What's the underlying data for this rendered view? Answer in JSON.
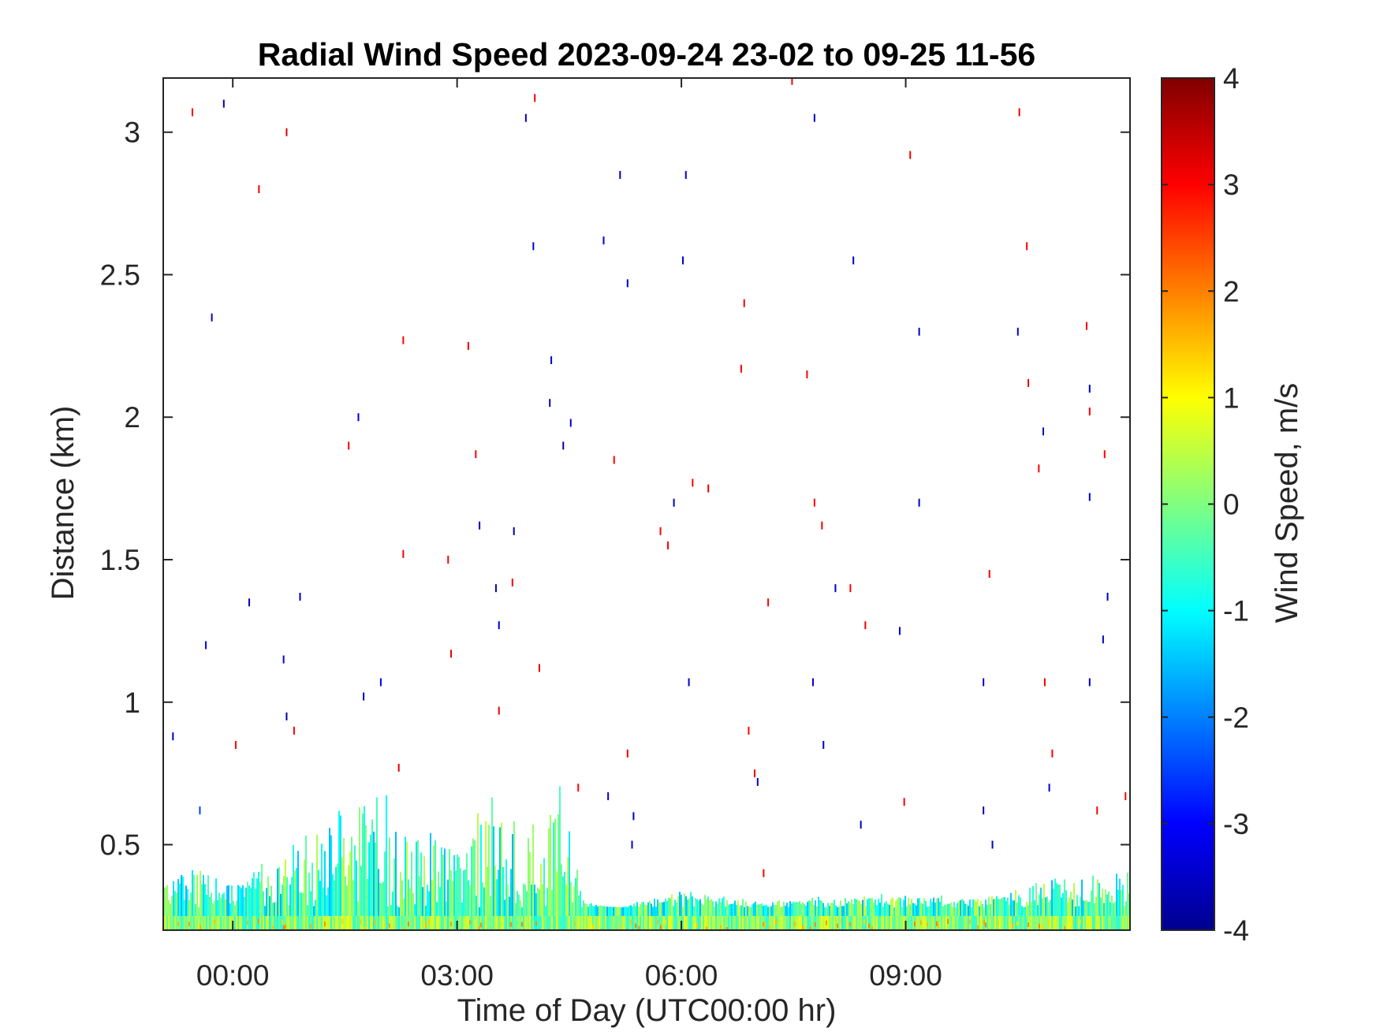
{
  "chart_data": {
    "type": "heatmap",
    "title": "Radial Wind Speed 2023-09-24 23-02 to 09-25 11-56",
    "xlabel": "Time of Day (UTC00:00 hr)",
    "ylabel": "Distance (km)",
    "colorbar_label": "Wind Speed, m/s",
    "xlim": [
      -0.93,
      12.0
    ],
    "ylim": [
      0.2,
      3.19
    ],
    "x_ticks": [
      {
        "value": 0,
        "label": "00:00"
      },
      {
        "value": 3,
        "label": "03:00"
      },
      {
        "value": 6,
        "label": "06:00"
      },
      {
        "value": 9,
        "label": "09:00"
      }
    ],
    "y_ticks": [
      {
        "value": 0.5,
        "label": "0.5"
      },
      {
        "value": 1,
        "label": "1"
      },
      {
        "value": 1.5,
        "label": "1.5"
      },
      {
        "value": 2,
        "label": "2"
      },
      {
        "value": 2.5,
        "label": "2.5"
      },
      {
        "value": 3,
        "label": "3"
      }
    ],
    "clim": [
      -4,
      4
    ],
    "colorbar_ticks": [
      {
        "value": 4,
        "label": "4"
      },
      {
        "value": 3,
        "label": "3"
      },
      {
        "value": 2,
        "label": "2"
      },
      {
        "value": 1,
        "label": "1"
      },
      {
        "value": 0,
        "label": "0"
      },
      {
        "value": -1,
        "label": "-1"
      },
      {
        "value": -2,
        "label": "-2"
      },
      {
        "value": -3,
        "label": "-3"
      },
      {
        "value": -4,
        "label": "-4"
      }
    ],
    "colormap": "jet",
    "colormap_stops": [
      "#00008f",
      "#0000ff",
      "#0080ff",
      "#00ffff",
      "#80ff80",
      "#ffff00",
      "#ff8000",
      "#ff0000",
      "#800000"
    ],
    "dense_layer_top_km": [
      {
        "time": -0.9,
        "distance": 0.42
      },
      {
        "time": -0.5,
        "distance": 0.46
      },
      {
        "time": 0.0,
        "distance": 0.38
      },
      {
        "time": 0.6,
        "distance": 0.55
      },
      {
        "time": 0.9,
        "distance": 0.6
      },
      {
        "time": 1.5,
        "distance": 0.78
      },
      {
        "time": 1.7,
        "distance": 0.78
      },
      {
        "time": 2.0,
        "distance": 0.72
      },
      {
        "time": 2.5,
        "distance": 0.6
      },
      {
        "time": 3.0,
        "distance": 0.55
      },
      {
        "time": 3.4,
        "distance": 0.72
      },
      {
        "time": 3.9,
        "distance": 0.7
      },
      {
        "time": 4.4,
        "distance": 0.73
      },
      {
        "time": 4.7,
        "distance": 0.3
      },
      {
        "time": 5.2,
        "distance": 0.28
      },
      {
        "time": 6.0,
        "distance": 0.36
      },
      {
        "time": 7.0,
        "distance": 0.3
      },
      {
        "time": 8.0,
        "distance": 0.32
      },
      {
        "time": 9.0,
        "distance": 0.33
      },
      {
        "time": 10.0,
        "distance": 0.32
      },
      {
        "time": 10.6,
        "distance": 0.38
      },
      {
        "time": 11.0,
        "distance": 0.42
      },
      {
        "time": 11.6,
        "distance": 0.44
      },
      {
        "time": 12.0,
        "distance": 0.45
      }
    ],
    "sparse_points": [
      {
        "time": -0.8,
        "distance": 0.88,
        "value": -3.5
      },
      {
        "time": -0.54,
        "distance": 3.07,
        "value": 3.0
      },
      {
        "time": -0.44,
        "distance": 0.62,
        "value": -2.5
      },
      {
        "time": -0.36,
        "distance": 1.2,
        "value": -3.0
      },
      {
        "time": -0.28,
        "distance": 2.35,
        "value": -3.5
      },
      {
        "time": -0.12,
        "distance": 3.1,
        "value": -3.8
      },
      {
        "time": 0.04,
        "distance": 0.85,
        "value": 3.0
      },
      {
        "time": 0.22,
        "distance": 1.35,
        "value": -3.6
      },
      {
        "time": 0.35,
        "distance": 2.8,
        "value": 3.1
      },
      {
        "time": 0.68,
        "distance": 1.15,
        "value": -3.4
      },
      {
        "time": 0.72,
        "distance": 0.95,
        "value": -3.8
      },
      {
        "time": 0.72,
        "distance": 3.0,
        "value": 3.3
      },
      {
        "time": 0.82,
        "distance": 0.9,
        "value": 3.0
      },
      {
        "time": 0.9,
        "distance": 1.37,
        "value": -3.6
      },
      {
        "time": 1.55,
        "distance": 1.9,
        "value": 3.0
      },
      {
        "time": 1.68,
        "distance": 2.0,
        "value": -3.5
      },
      {
        "time": 1.75,
        "distance": 1.02,
        "value": -3.7
      },
      {
        "time": 1.98,
        "distance": 1.07,
        "value": -3.2
      },
      {
        "time": 2.22,
        "distance": 0.77,
        "value": 3.2
      },
      {
        "time": 2.28,
        "distance": 2.27,
        "value": 3.0
      },
      {
        "time": 2.28,
        "distance": 1.52,
        "value": 3.1
      },
      {
        "time": 2.88,
        "distance": 1.5,
        "value": 3.0
      },
      {
        "time": 2.92,
        "distance": 1.17,
        "value": 3.2
      },
      {
        "time": 3.15,
        "distance": 2.25,
        "value": 3.1
      },
      {
        "time": 3.25,
        "distance": 1.87,
        "value": 3.0
      },
      {
        "time": 3.3,
        "distance": 1.62,
        "value": -3.5
      },
      {
        "time": 3.52,
        "distance": 1.4,
        "value": -3.6
      },
      {
        "time": 3.56,
        "distance": 1.27,
        "value": -3.5
      },
      {
        "time": 3.56,
        "distance": 0.97,
        "value": 3.1
      },
      {
        "time": 3.74,
        "distance": 1.42,
        "value": 3.0
      },
      {
        "time": 3.76,
        "distance": 1.6,
        "value": -3.7
      },
      {
        "time": 3.92,
        "distance": 3.05,
        "value": -3.6
      },
      {
        "time": 4.02,
        "distance": 2.6,
        "value": -3.4
      },
      {
        "time": 4.04,
        "distance": 3.12,
        "value": 3.1
      },
      {
        "time": 4.1,
        "distance": 1.12,
        "value": 3.3
      },
      {
        "time": 4.26,
        "distance": 2.2,
        "value": -3.5
      },
      {
        "time": 4.24,
        "distance": 2.05,
        "value": -3.6
      },
      {
        "time": 4.42,
        "distance": 1.9,
        "value": -3.7
      },
      {
        "time": 4.52,
        "distance": 1.98,
        "value": -3.5
      },
      {
        "time": 4.62,
        "distance": 0.7,
        "value": 3.0
      },
      {
        "time": 4.96,
        "distance": 2.62,
        "value": -3.4
      },
      {
        "time": 5.02,
        "distance": 0.67,
        "value": -3.5
      },
      {
        "time": 5.1,
        "distance": 1.85,
        "value": 3.0
      },
      {
        "time": 5.18,
        "distance": 2.85,
        "value": -3.6
      },
      {
        "time": 5.28,
        "distance": 2.47,
        "value": -3.5
      },
      {
        "time": 5.28,
        "distance": 0.82,
        "value": 3.1
      },
      {
        "time": 5.36,
        "distance": 0.6,
        "value": -3.6
      },
      {
        "time": 5.34,
        "distance": 0.5,
        "value": -3.4
      },
      {
        "time": 5.72,
        "distance": 1.6,
        "value": 3.0
      },
      {
        "time": 5.82,
        "distance": 1.55,
        "value": 3.1
      },
      {
        "time": 5.9,
        "distance": 1.7,
        "value": -3.5
      },
      {
        "time": 6.02,
        "distance": 2.55,
        "value": -3.6
      },
      {
        "time": 6.06,
        "distance": 2.85,
        "value": -3.4
      },
      {
        "time": 6.1,
        "distance": 1.07,
        "value": -3.5
      },
      {
        "time": 6.15,
        "distance": 1.77,
        "value": 3.0
      },
      {
        "time": 6.36,
        "distance": 1.75,
        "value": 3.2
      },
      {
        "time": 6.8,
        "distance": 2.17,
        "value": 3.0
      },
      {
        "time": 6.84,
        "distance": 2.4,
        "value": 3.1
      },
      {
        "time": 6.9,
        "distance": 0.9,
        "value": 3.0
      },
      {
        "time": 6.98,
        "distance": 0.75,
        "value": 3.1
      },
      {
        "time": 7.02,
        "distance": 0.72,
        "value": -3.5
      },
      {
        "time": 7.1,
        "distance": 0.4,
        "value": 3.0
      },
      {
        "time": 7.16,
        "distance": 1.35,
        "value": 3.0
      },
      {
        "time": 7.48,
        "distance": 3.18,
        "value": 3.1
      },
      {
        "time": 7.68,
        "distance": 2.15,
        "value": 3.0
      },
      {
        "time": 7.76,
        "distance": 1.07,
        "value": -3.5
      },
      {
        "time": 7.78,
        "distance": 3.05,
        "value": -3.6
      },
      {
        "time": 7.78,
        "distance": 1.7,
        "value": 3.0
      },
      {
        "time": 7.88,
        "distance": 1.62,
        "value": 3.1
      },
      {
        "time": 7.9,
        "distance": 0.85,
        "value": -3.4
      },
      {
        "time": 8.06,
        "distance": 1.4,
        "value": -3.6
      },
      {
        "time": 8.26,
        "distance": 1.4,
        "value": 3.0
      },
      {
        "time": 8.3,
        "distance": 2.55,
        "value": -3.5
      },
      {
        "time": 8.4,
        "distance": 0.57,
        "value": -3.6
      },
      {
        "time": 8.46,
        "distance": 1.27,
        "value": 3.1
      },
      {
        "time": 8.92,
        "distance": 1.25,
        "value": -3.5
      },
      {
        "time": 8.98,
        "distance": 0.65,
        "value": 3.0
      },
      {
        "time": 9.06,
        "distance": 2.92,
        "value": 3.1
      },
      {
        "time": 9.18,
        "distance": 2.3,
        "value": -3.6
      },
      {
        "time": 9.18,
        "distance": 1.7,
        "value": -3.5
      },
      {
        "time": 10.04,
        "distance": 1.07,
        "value": -3.4
      },
      {
        "time": 10.04,
        "distance": 0.62,
        "value": -3.6
      },
      {
        "time": 10.12,
        "distance": 1.45,
        "value": 3.0
      },
      {
        "time": 10.16,
        "distance": 0.5,
        "value": -3.5
      },
      {
        "time": 10.5,
        "distance": 2.3,
        "value": -3.5
      },
      {
        "time": 10.52,
        "distance": 3.07,
        "value": 3.1
      },
      {
        "time": 10.62,
        "distance": 2.6,
        "value": 3.0
      },
      {
        "time": 10.64,
        "distance": 2.12,
        "value": 3.2
      },
      {
        "time": 10.78,
        "distance": 1.82,
        "value": 3.0
      },
      {
        "time": 10.84,
        "distance": 1.95,
        "value": -3.6
      },
      {
        "time": 10.86,
        "distance": 1.07,
        "value": 3.1
      },
      {
        "time": 10.92,
        "distance": 0.7,
        "value": -3.5
      },
      {
        "time": 10.96,
        "distance": 0.82,
        "value": 3.0
      },
      {
        "time": 11.42,
        "distance": 2.32,
        "value": 3.0
      },
      {
        "time": 11.46,
        "distance": 2.1,
        "value": -3.5
      },
      {
        "time": 11.46,
        "distance": 2.02,
        "value": 3.1
      },
      {
        "time": 11.46,
        "distance": 1.72,
        "value": -3.4
      },
      {
        "time": 11.46,
        "distance": 1.07,
        "value": -3.6
      },
      {
        "time": 11.56,
        "distance": 0.62,
        "value": 3.0
      },
      {
        "time": 11.64,
        "distance": 1.22,
        "value": -3.5
      },
      {
        "time": 11.66,
        "distance": 1.87,
        "value": 3.0
      },
      {
        "time": 11.7,
        "distance": 1.37,
        "value": -3.6
      },
      {
        "time": 11.94,
        "distance": 0.67,
        "value": 3.0
      }
    ]
  }
}
